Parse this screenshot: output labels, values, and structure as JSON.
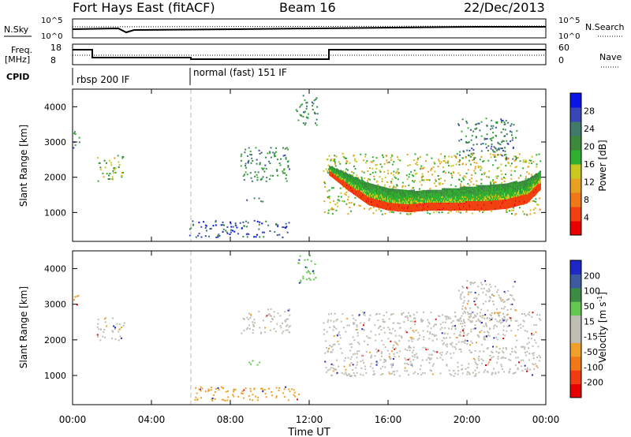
{
  "header": {
    "station": "Fort Hays East (fitACF)",
    "beam": "Beam 16",
    "date": "22/Dec/2013"
  },
  "summary_panels": {
    "nsky_label": "N.Sky",
    "nsearch_label": "N.Search",
    "noise_ticks": [
      "10^5",
      "10^0"
    ],
    "freq_label_line1": "Freq.",
    "freq_label_line2": "[MHz]",
    "freq_ticks": [
      "18",
      "8"
    ],
    "nave_label": "Nave",
    "nave_ticks": [
      "60",
      "0"
    ],
    "cpid_label": "CPID",
    "cpid_segments": [
      {
        "label": "rbsp 200 IF",
        "start_hour": 0
      },
      {
        "label": "normal (fast) 151 IF",
        "start_hour": 6
      }
    ]
  },
  "time_axis": {
    "label": "Time UT",
    "ticks": [
      "00:00",
      "04:00",
      "08:00",
      "12:00",
      "16:00",
      "20:00",
      "00:00"
    ]
  },
  "chart_data": [
    {
      "type": "heatmap",
      "name": "power",
      "xlabel": "Time UT",
      "ylabel": "Slant Range [km]",
      "xlim": [
        0,
        24
      ],
      "ylim": [
        180,
        4500
      ],
      "yticks": [
        1000,
        2000,
        3000,
        4000
      ],
      "colorbar": {
        "label": "Power [dB]",
        "ticks": [
          "28",
          "24",
          "20",
          "16",
          "12",
          "8",
          "4"
        ],
        "colors": [
          "#0a14e6",
          "#3a46b8",
          "#3f7a6a",
          "#3b8a3c",
          "#2fb02f",
          "#c8c820",
          "#e8a020",
          "#f07818",
          "#f04010",
          "#e80000"
        ]
      },
      "regions": [
        {
          "t0": 0.0,
          "t1": 0.4,
          "r0": 2850,
          "r1": 3350,
          "level": 0.3
        },
        {
          "t0": 1.2,
          "t1": 2.6,
          "r0": 1900,
          "r1": 2650,
          "level": 0.45
        },
        {
          "t0": 5.9,
          "t1": 11.0,
          "r0": 300,
          "r1": 800,
          "level": 0.15
        },
        {
          "t0": 8.5,
          "t1": 11.0,
          "r0": 1900,
          "r1": 2900,
          "level": 0.3
        },
        {
          "t0": 8.8,
          "t1": 9.7,
          "r0": 1300,
          "r1": 1450,
          "level": 0.25
        },
        {
          "t0": 11.3,
          "t1": 12.4,
          "r0": 3500,
          "r1": 4400,
          "level": 0.3
        },
        {
          "t0": 12.7,
          "t1": 23.7,
          "r0": 950,
          "r1": 2700,
          "level": 0.55
        },
        {
          "t0": 19.5,
          "t1": 22.5,
          "r0": 2500,
          "r1": 3700,
          "level": 0.25
        }
      ],
      "layers": [
        {
          "hours": [
            13,
            14,
            15,
            16,
            17,
            18,
            19,
            20,
            21,
            22,
            23,
            23.7
          ],
          "bottom": [
            2100,
            1650,
            1250,
            1100,
            1050,
            1100,
            1100,
            1100,
            1100,
            1150,
            1300,
            1700
          ],
          "top": [
            2350,
            2100,
            1850,
            1700,
            1650,
            1650,
            1700,
            1750,
            1800,
            1850,
            1950,
            2200
          ],
          "level": 0.95
        }
      ]
    },
    {
      "type": "heatmap",
      "name": "velocity",
      "xlabel": "Time UT",
      "ylabel": "Slant Range [km]",
      "xlim": [
        0,
        24
      ],
      "ylim": [
        180,
        4500
      ],
      "yticks": [
        1000,
        2000,
        3000,
        4000
      ],
      "colorbar": {
        "label": "Velocity [m s^-1]",
        "ticks": [
          "200",
          "100",
          "50",
          "15",
          "-15",
          "-50",
          "-100",
          "-200"
        ],
        "colors": [
          "#1e28c8",
          "#3c5aa0",
          "#3c8c46",
          "#64c850",
          "#bebeb4",
          "#bebeb4",
          "#f0a028",
          "#f07818",
          "#f03c10",
          "#e60000"
        ]
      },
      "regions": [
        {
          "t0": 0.0,
          "t1": 0.4,
          "r0": 3000,
          "r1": 3300,
          "level": "orange"
        },
        {
          "t0": 1.2,
          "t1": 2.6,
          "r0": 2000,
          "r1": 2650,
          "level": "gray"
        },
        {
          "t0": 5.9,
          "t1": 11.5,
          "r0": 300,
          "r1": 700,
          "level": "orange"
        },
        {
          "t0": 8.5,
          "t1": 11.0,
          "r0": 2200,
          "r1": 2900,
          "level": "gray"
        },
        {
          "t0": 8.8,
          "t1": 9.7,
          "r0": 1300,
          "r1": 1450,
          "level": "green"
        },
        {
          "t0": 11.4,
          "t1": 12.3,
          "r0": 3600,
          "r1": 4400,
          "level": "green"
        },
        {
          "t0": 12.7,
          "t1": 23.7,
          "r0": 1000,
          "r1": 2800,
          "level": "gray"
        },
        {
          "t0": 19.5,
          "t1": 22.5,
          "r0": 2500,
          "r1": 3700,
          "level": "gray"
        }
      ]
    }
  ]
}
